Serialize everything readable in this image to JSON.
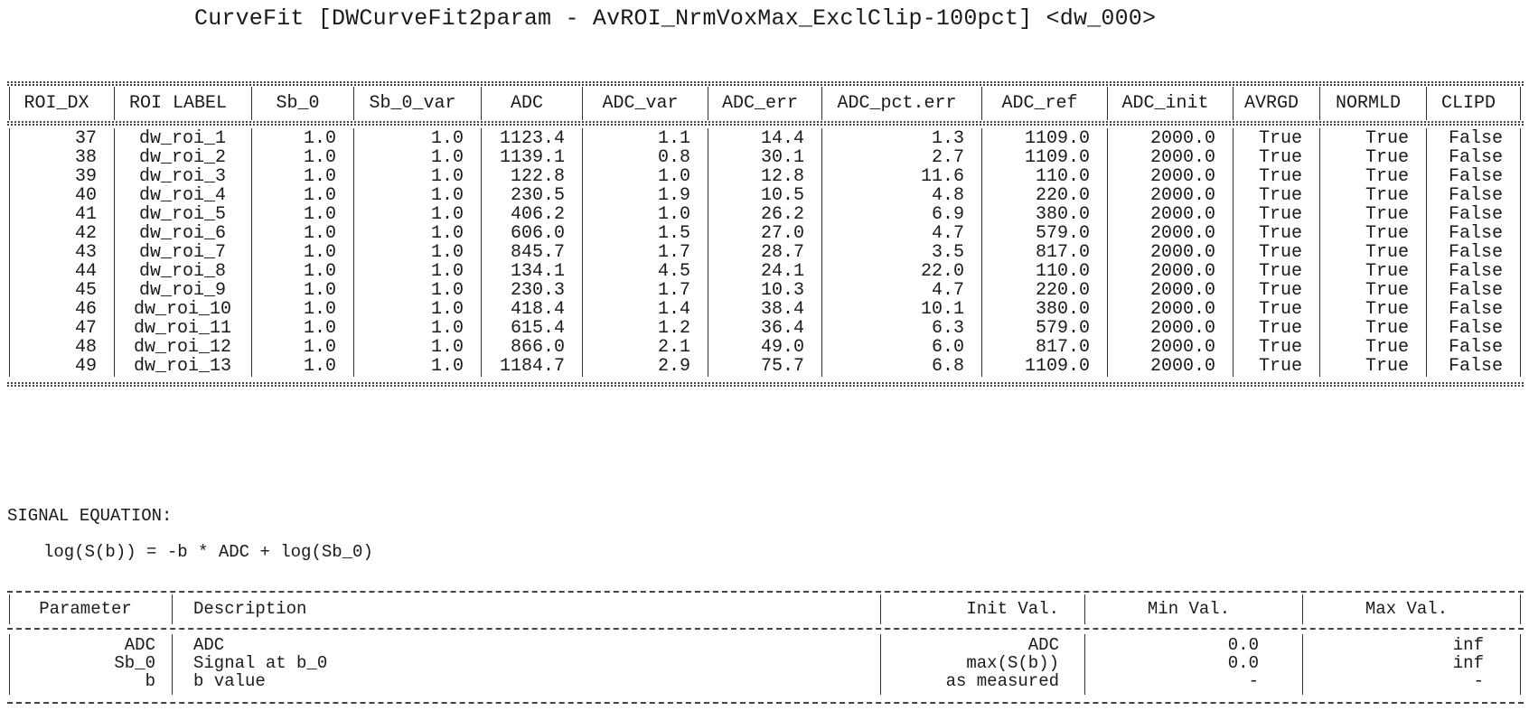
{
  "title": "CurveFit [DWCurveFit2param - AvROI_NrmVoxMax_ExclClip-100pct] <dw_000>",
  "roi_table": {
    "columns": [
      "ROI_DX",
      "ROI LABEL",
      "Sb_0",
      "Sb_0_var",
      "ADC",
      "ADC_var",
      "ADC_err",
      "ADC_pct.err",
      "ADC_ref",
      "ADC_init",
      "AVRGD",
      "NORMLD",
      "CLIPD"
    ],
    "rows": [
      [
        "37",
        "dw_roi_1",
        "1.0",
        "1.0",
        "1123.4",
        "1.1",
        "14.4",
        "1.3",
        "1109.0",
        "2000.0",
        "True",
        "True",
        "False"
      ],
      [
        "38",
        "dw_roi_2",
        "1.0",
        "1.0",
        "1139.1",
        "0.8",
        "30.1",
        "2.7",
        "1109.0",
        "2000.0",
        "True",
        "True",
        "False"
      ],
      [
        "39",
        "dw_roi_3",
        "1.0",
        "1.0",
        "122.8",
        "1.0",
        "12.8",
        "11.6",
        "110.0",
        "2000.0",
        "True",
        "True",
        "False"
      ],
      [
        "40",
        "dw_roi_4",
        "1.0",
        "1.0",
        "230.5",
        "1.9",
        "10.5",
        "4.8",
        "220.0",
        "2000.0",
        "True",
        "True",
        "False"
      ],
      [
        "41",
        "dw_roi_5",
        "1.0",
        "1.0",
        "406.2",
        "1.0",
        "26.2",
        "6.9",
        "380.0",
        "2000.0",
        "True",
        "True",
        "False"
      ],
      [
        "42",
        "dw_roi_6",
        "1.0",
        "1.0",
        "606.0",
        "1.5",
        "27.0",
        "4.7",
        "579.0",
        "2000.0",
        "True",
        "True",
        "False"
      ],
      [
        "43",
        "dw_roi_7",
        "1.0",
        "1.0",
        "845.7",
        "1.7",
        "28.7",
        "3.5",
        "817.0",
        "2000.0",
        "True",
        "True",
        "False"
      ],
      [
        "44",
        "dw_roi_8",
        "1.0",
        "1.0",
        "134.1",
        "4.5",
        "24.1",
        "22.0",
        "110.0",
        "2000.0",
        "True",
        "True",
        "False"
      ],
      [
        "45",
        "dw_roi_9",
        "1.0",
        "1.0",
        "230.3",
        "1.7",
        "10.3",
        "4.7",
        "220.0",
        "2000.0",
        "True",
        "True",
        "False"
      ],
      [
        "46",
        "dw_roi_10",
        "1.0",
        "1.0",
        "418.4",
        "1.4",
        "38.4",
        "10.1",
        "380.0",
        "2000.0",
        "True",
        "True",
        "False"
      ],
      [
        "47",
        "dw_roi_11",
        "1.0",
        "1.0",
        "615.4",
        "1.2",
        "36.4",
        "6.3",
        "579.0",
        "2000.0",
        "True",
        "True",
        "False"
      ],
      [
        "48",
        "dw_roi_12",
        "1.0",
        "1.0",
        "866.0",
        "2.1",
        "49.0",
        "6.0",
        "817.0",
        "2000.0",
        "True",
        "True",
        "False"
      ],
      [
        "49",
        "dw_roi_13",
        "1.0",
        "1.0",
        "1184.7",
        "2.9",
        "75.7",
        "6.8",
        "1109.0",
        "2000.0",
        "True",
        "True",
        "False"
      ]
    ]
  },
  "signal_equation": {
    "label": "SIGNAL EQUATION:",
    "equation": "log(S(b)) = -b * ADC + log(Sb_0)"
  },
  "param_table": {
    "columns": [
      "Parameter",
      "Description",
      "Init Val.",
      "Min Val.",
      "Max Val."
    ],
    "rows": [
      [
        "ADC",
        "ADC",
        "ADC",
        "0.0",
        "inf"
      ],
      [
        "Sb_0",
        "Signal at b_0",
        "max(S(b))",
        "0.0",
        "inf"
      ],
      [
        "b",
        "b value",
        "as measured",
        "-",
        "-"
      ]
    ]
  }
}
